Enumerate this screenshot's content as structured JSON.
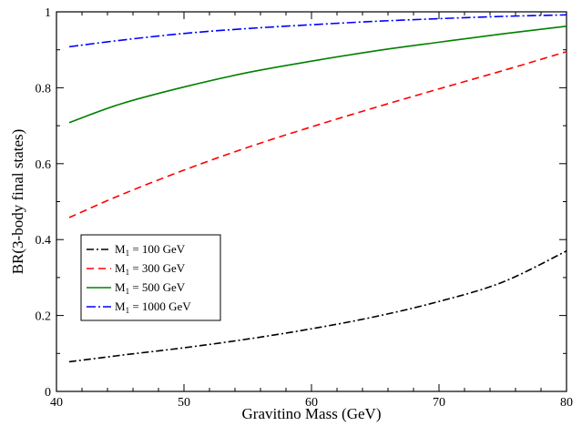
{
  "chart_data": {
    "type": "line",
    "xlabel": "Gravitino Mass (GeV)",
    "ylabel": "BR(3-body final states)",
    "xlim": [
      40,
      80
    ],
    "ylim": [
      0,
      1
    ],
    "x_ticks": [
      40,
      50,
      60,
      70,
      80
    ],
    "y_ticks": [
      0,
      0.2,
      0.4,
      0.6,
      0.8,
      1
    ],
    "x_tick_labels": [
      "40",
      "50",
      "60",
      "70",
      "80"
    ],
    "y_tick_labels": [
      "0",
      "0.2",
      "0.4",
      "0.6",
      "0.8",
      "1"
    ],
    "grid": false,
    "legend_position": "center-left",
    "series": [
      {
        "name": "M1 = 100 GeV",
        "legend_main": "M",
        "legend_sub": "1",
        "legend_rest": " = 100 GeV",
        "color": "#000000",
        "dash": "8,3,2,3",
        "x": [
          41,
          45,
          50,
          55,
          60,
          65,
          70,
          75,
          80
        ],
        "y": [
          0.078,
          0.095,
          0.115,
          0.138,
          0.165,
          0.197,
          0.237,
          0.288,
          0.37
        ]
      },
      {
        "name": "M1 = 300 GeV",
        "legend_main": "M",
        "legend_sub": "1",
        "legend_rest": " = 300 GeV",
        "color": "#ff0000",
        "dash": "8,5",
        "x": [
          41,
          45,
          50,
          55,
          60,
          65,
          70,
          75,
          80
        ],
        "y": [
          0.458,
          0.517,
          0.583,
          0.643,
          0.697,
          0.748,
          0.797,
          0.845,
          0.895
        ]
      },
      {
        "name": "M1 = 500 GeV",
        "legend_main": "M",
        "legend_sub": "1",
        "legend_rest": " = 500 GeV",
        "color": "#008000",
        "dash": "",
        "x": [
          41,
          45,
          50,
          55,
          60,
          65,
          70,
          75,
          80
        ],
        "y": [
          0.708,
          0.757,
          0.802,
          0.84,
          0.87,
          0.897,
          0.92,
          0.942,
          0.962
        ]
      },
      {
        "name": "M1 = 1000 GeV",
        "legend_main": "M",
        "legend_sub": "1",
        "legend_rest": " = 1000 GeV",
        "color": "#0000ff",
        "dash": "10,3,2,3",
        "x": [
          41,
          45,
          50,
          55,
          60,
          65,
          70,
          75,
          80
        ],
        "y": [
          0.908,
          0.925,
          0.943,
          0.956,
          0.966,
          0.975,
          0.982,
          0.988,
          0.992
        ]
      }
    ]
  }
}
